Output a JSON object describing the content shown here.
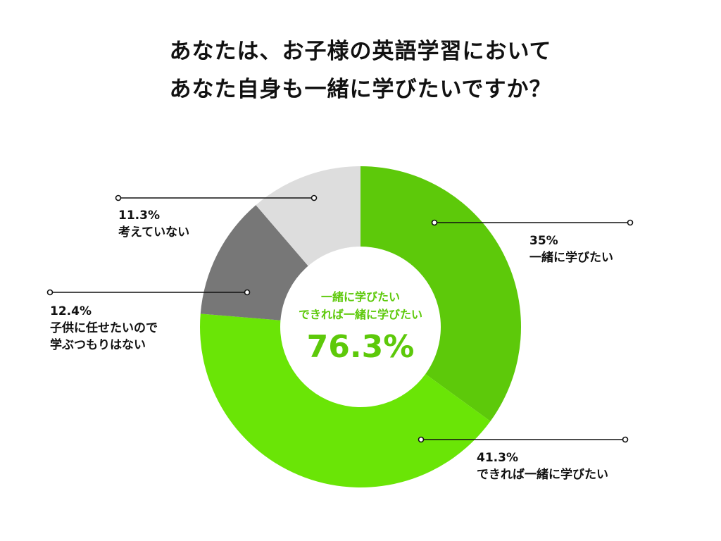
{
  "title": {
    "line1": "あなたは、お子様の英語学習において",
    "line2": "あなた自身も一緒に学びたいですか？"
  },
  "center": {
    "line1": "一緒に学びたい",
    "line2": "できれば一緒に学びたい",
    "total": "76.3%"
  },
  "colors": {
    "accent": "#5dc90a",
    "slices": [
      "#5dc90a",
      "#6ae506",
      "#777777",
      "#dddddd"
    ],
    "leader": "#111111"
  },
  "chart_data": {
    "type": "pie",
    "donut": true,
    "title": "あなたは、お子様の英語学習において あなた自身も一緒に学びたいですか？",
    "categories": [
      "一緒に学びたい",
      "できれば一緒に学びたい",
      "子供に任せたいので学ぶつもりはない",
      "考えていない"
    ],
    "values": [
      35,
      41.3,
      12.4,
      11.3
    ],
    "labels": [
      {
        "percent": "35%",
        "lines": [
          "一緒に学びたい"
        ]
      },
      {
        "percent": "41.3%",
        "lines": [
          "できれば一緒に学びたい"
        ]
      },
      {
        "percent": "12.4%",
        "lines": [
          "子供に任せたいので",
          "学ぶつもりはない"
        ]
      },
      {
        "percent": "11.3%",
        "lines": [
          "考えていない"
        ]
      }
    ],
    "center_label": "76.3%"
  }
}
